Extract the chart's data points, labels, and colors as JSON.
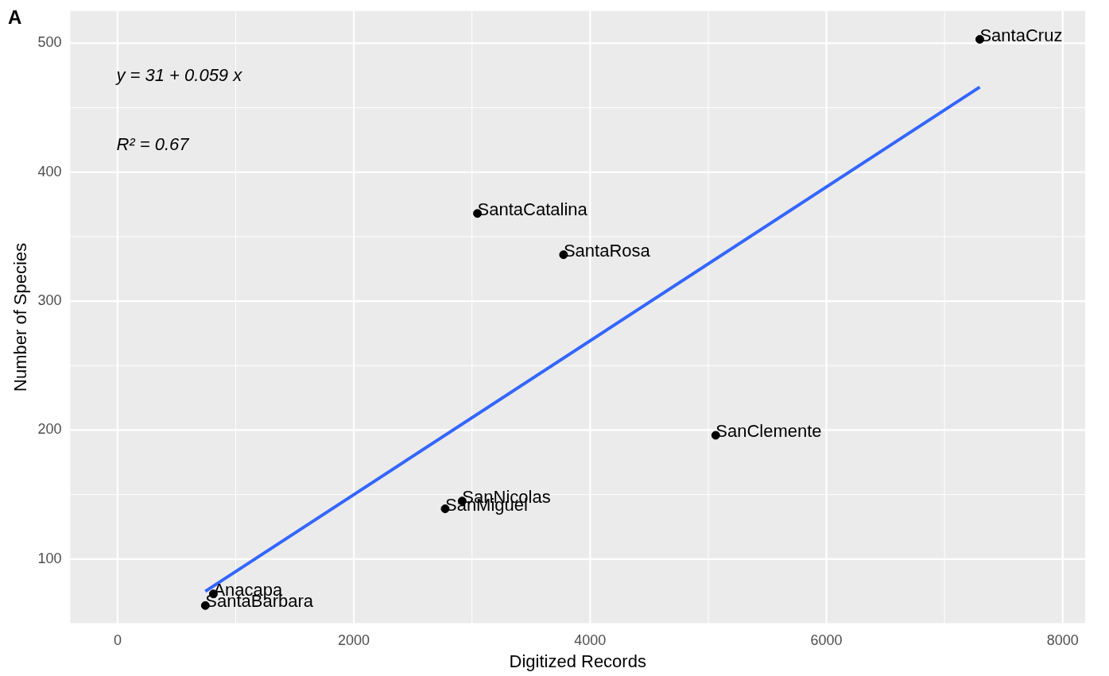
{
  "chart_data": {
    "type": "scatter",
    "xlabel": "Digitized Records",
    "ylabel": "Number of Species",
    "annotations": [
      "A",
      "y = 31 + 0.059 x",
      "R² = 0.67"
    ],
    "xlim": [
      -400,
      8190
    ],
    "xticks": [
      0,
      2000,
      4000,
      6000,
      8000
    ],
    "ylim": [
      50,
      525
    ],
    "yticks": [
      100,
      200,
      300,
      400,
      500
    ],
    "grid": true,
    "legend": false,
    "marker": "circle",
    "series": [
      {
        "color": "#000000",
        "x": [
          7298,
          3046,
          3775,
          5063,
          2917,
          2773,
          811,
          743
        ],
        "values": [
          503,
          368,
          336,
          196,
          145,
          139,
          73,
          64
        ],
        "value_labels": [
          "SantaCruz",
          "SantaCatalina",
          "SantaRosa",
          "SanClemente",
          "SanNicolas",
          "SanMiguel",
          "Anacapa",
          "SantaBarbara"
        ]
      },
      {
        "type": "line",
        "color": "#3366ff",
        "x": [
          743,
          7298
        ],
        "values": [
          75,
          466
        ],
        "marker": "none",
        "line_style": "solid"
      }
    ]
  }
}
